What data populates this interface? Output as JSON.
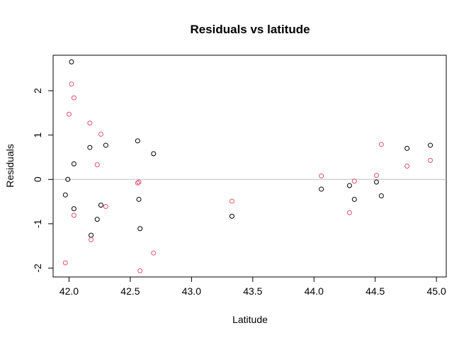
{
  "chart_data": {
    "type": "scatter",
    "title": "Residuals vs latitude",
    "xlabel": "Latitude",
    "ylabel": "Residuals",
    "xlim": [
      41.87,
      45.08
    ],
    "ylim": [
      -2.2,
      2.8
    ],
    "x_ticks": [
      42.0,
      42.5,
      43.0,
      43.5,
      44.0,
      44.5,
      45.0
    ],
    "x_tick_labels": [
      "42.0",
      "42.5",
      "43.0",
      "43.5",
      "44.0",
      "44.5",
      "45.0"
    ],
    "y_ticks": [
      -2,
      -1,
      0,
      1,
      2
    ],
    "y_tick_labels": [
      "-2",
      "-1",
      "0",
      "1",
      "2"
    ],
    "reference_line": {
      "y": 0,
      "color": "#bebebe"
    },
    "grid": false,
    "series": [
      {
        "color": "#000000",
        "points": [
          {
            "x": 41.97,
            "y": -0.35
          },
          {
            "x": 41.99,
            "y": 0.0
          },
          {
            "x": 42.02,
            "y": 2.65
          },
          {
            "x": 42.04,
            "y": 0.35
          },
          {
            "x": 42.04,
            "y": -0.66
          },
          {
            "x": 42.17,
            "y": 0.72
          },
          {
            "x": 42.18,
            "y": -1.26
          },
          {
            "x": 42.23,
            "y": -0.9
          },
          {
            "x": 42.26,
            "y": -0.58
          },
          {
            "x": 42.3,
            "y": 0.77
          },
          {
            "x": 42.56,
            "y": 0.87
          },
          {
            "x": 42.57,
            "y": -0.45
          },
          {
            "x": 42.58,
            "y": -1.11
          },
          {
            "x": 42.69,
            "y": 0.58
          },
          {
            "x": 43.33,
            "y": -0.83
          },
          {
            "x": 44.06,
            "y": -0.22
          },
          {
            "x": 44.29,
            "y": -0.14
          },
          {
            "x": 44.33,
            "y": -0.45
          },
          {
            "x": 44.51,
            "y": -0.06
          },
          {
            "x": 44.55,
            "y": -0.37
          },
          {
            "x": 44.76,
            "y": 0.7
          },
          {
            "x": 44.95,
            "y": 0.77
          }
        ]
      },
      {
        "color": "#df536b",
        "points": [
          {
            "x": 41.97,
            "y": -1.88
          },
          {
            "x": 42.0,
            "y": 1.47
          },
          {
            "x": 42.02,
            "y": 2.15
          },
          {
            "x": 42.04,
            "y": 1.84
          },
          {
            "x": 42.04,
            "y": -0.81
          },
          {
            "x": 42.17,
            "y": 1.27
          },
          {
            "x": 42.18,
            "y": -1.36
          },
          {
            "x": 42.23,
            "y": 0.33
          },
          {
            "x": 42.26,
            "y": 1.02
          },
          {
            "x": 42.3,
            "y": -0.61
          },
          {
            "x": 42.56,
            "y": -0.08
          },
          {
            "x": 42.57,
            "y": -0.06
          },
          {
            "x": 42.58,
            "y": -2.06
          },
          {
            "x": 42.69,
            "y": -1.66
          },
          {
            "x": 43.33,
            "y": -0.49
          },
          {
            "x": 44.06,
            "y": 0.08
          },
          {
            "x": 44.29,
            "y": -0.75
          },
          {
            "x": 44.33,
            "y": -0.04
          },
          {
            "x": 44.51,
            "y": 0.09
          },
          {
            "x": 44.55,
            "y": 0.79
          },
          {
            "x": 44.76,
            "y": 0.3
          },
          {
            "x": 44.95,
            "y": 0.43
          }
        ]
      }
    ]
  }
}
